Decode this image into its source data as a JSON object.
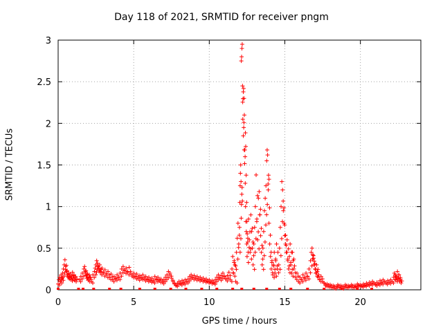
{
  "chart_data": {
    "type": "scatter",
    "title": "Day 118 of 2021, SRMTID for receiver pngm",
    "xlabel": "GPS time / hours",
    "ylabel": "SRMTID / TECUs",
    "xlim": [
      0,
      24
    ],
    "ylim": [
      0,
      3
    ],
    "xticks": [
      0,
      5,
      10,
      15,
      20
    ],
    "yticks": [
      0,
      0.5,
      1,
      1.5,
      2,
      2.5,
      3
    ],
    "ytick_labels": [
      "0",
      "0.5",
      "1",
      "1.5",
      "2",
      "2.5",
      "3"
    ],
    "grid": true,
    "marker": "+",
    "color": "#ff0000",
    "series": [
      {
        "name": "SRMTID",
        "points": [
          [
            0.0,
            0.07
          ],
          [
            0.05,
            0.12
          ],
          [
            0.1,
            0.15
          ],
          [
            0.15,
            0.1
          ],
          [
            0.2,
            0.18
          ],
          [
            0.25,
            0.14
          ],
          [
            0.3,
            0.2
          ],
          [
            0.35,
            0.25
          ],
          [
            0.4,
            0.3
          ],
          [
            0.45,
            0.36
          ],
          [
            0.5,
            0.28
          ],
          [
            0.55,
            0.22
          ],
          [
            0.6,
            0.18
          ],
          [
            0.65,
            0.16
          ],
          [
            0.7,
            0.2
          ],
          [
            0.75,
            0.15
          ],
          [
            0.8,
            0.19
          ],
          [
            0.85,
            0.13
          ],
          [
            0.9,
            0.17
          ],
          [
            0.95,
            0.21
          ],
          [
            1.0,
            0.14
          ],
          [
            1.05,
            0.18
          ],
          [
            1.1,
            0.12
          ],
          [
            1.15,
            0.16
          ],
          [
            1.4,
            0.12
          ],
          [
            1.5,
            0.16
          ],
          [
            1.6,
            0.2
          ],
          [
            1.7,
            0.25
          ],
          [
            1.75,
            0.28
          ],
          [
            1.8,
            0.22
          ],
          [
            1.85,
            0.17
          ],
          [
            1.9,
            0.14
          ],
          [
            1.95,
            0.19
          ],
          [
            2.0,
            0.12
          ],
          [
            2.05,
            0.18
          ],
          [
            2.1,
            0.15
          ],
          [
            2.2,
            0.1
          ],
          [
            2.3,
            0.18
          ],
          [
            2.4,
            0.22
          ],
          [
            2.45,
            0.26
          ],
          [
            2.5,
            0.3
          ],
          [
            2.55,
            0.35
          ],
          [
            2.6,
            0.32
          ],
          [
            2.65,
            0.28
          ],
          [
            2.7,
            0.25
          ],
          [
            2.75,
            0.3
          ],
          [
            2.8,
            0.22
          ],
          [
            2.9,
            0.26
          ],
          [
            3.0,
            0.2
          ],
          [
            3.1,
            0.24
          ],
          [
            3.2,
            0.18
          ],
          [
            3.3,
            0.22
          ],
          [
            3.4,
            0.15
          ],
          [
            3.5,
            0.19
          ],
          [
            3.6,
            0.12
          ],
          [
            3.7,
            0.16
          ],
          [
            3.8,
            0.14
          ],
          [
            3.9,
            0.18
          ],
          [
            4.0,
            0.15
          ],
          [
            4.1,
            0.2
          ],
          [
            4.2,
            0.25
          ],
          [
            4.3,
            0.28
          ],
          [
            4.4,
            0.24
          ],
          [
            4.5,
            0.26
          ],
          [
            4.6,
            0.22
          ],
          [
            4.7,
            0.27
          ],
          [
            4.8,
            0.2
          ],
          [
            4.9,
            0.18
          ],
          [
            5.0,
            0.2
          ],
          [
            5.1,
            0.16
          ],
          [
            5.2,
            0.19
          ],
          [
            5.3,
            0.14
          ],
          [
            5.4,
            0.17
          ],
          [
            5.5,
            0.15
          ],
          [
            5.6,
            0.18
          ],
          [
            5.7,
            0.13
          ],
          [
            5.8,
            0.16
          ],
          [
            5.9,
            0.12
          ],
          [
            6.0,
            0.15
          ],
          [
            6.1,
            0.11
          ],
          [
            6.2,
            0.14
          ],
          [
            6.3,
            0.1
          ],
          [
            6.4,
            0.16
          ],
          [
            6.5,
            0.12
          ],
          [
            6.6,
            0.15
          ],
          [
            6.7,
            0.11
          ],
          [
            6.8,
            0.13
          ],
          [
            6.9,
            0.09
          ],
          [
            7.0,
            0.12
          ],
          [
            7.1,
            0.15
          ],
          [
            7.2,
            0.18
          ],
          [
            7.3,
            0.22
          ],
          [
            7.4,
            0.2
          ],
          [
            7.5,
            0.14
          ],
          [
            7.6,
            0.1
          ],
          [
            7.7,
            0.07
          ],
          [
            7.8,
            0.05
          ],
          [
            7.9,
            0.08
          ],
          [
            8.0,
            0.1
          ],
          [
            8.1,
            0.07
          ],
          [
            8.2,
            0.11
          ],
          [
            8.3,
            0.08
          ],
          [
            8.4,
            0.12
          ],
          [
            8.5,
            0.1
          ],
          [
            8.6,
            0.13
          ],
          [
            8.7,
            0.16
          ],
          [
            8.8,
            0.18
          ],
          [
            8.9,
            0.15
          ],
          [
            9.0,
            0.17
          ],
          [
            9.1,
            0.14
          ],
          [
            9.2,
            0.16
          ],
          [
            9.3,
            0.13
          ],
          [
            9.4,
            0.15
          ],
          [
            9.5,
            0.12
          ],
          [
            9.6,
            0.14
          ],
          [
            9.7,
            0.11
          ],
          [
            9.8,
            0.13
          ],
          [
            9.9,
            0.1
          ],
          [
            10.0,
            0.12
          ],
          [
            10.1,
            0.09
          ],
          [
            10.2,
            0.11
          ],
          [
            10.3,
            0.08
          ],
          [
            10.4,
            0.12
          ],
          [
            10.5,
            0.15
          ],
          [
            10.6,
            0.18
          ],
          [
            10.7,
            0.14
          ],
          [
            10.8,
            0.17
          ],
          [
            10.9,
            0.2
          ],
          [
            11.0,
            0.16
          ],
          [
            11.1,
            0.13
          ],
          [
            11.2,
            0.17
          ],
          [
            11.3,
            0.21
          ],
          [
            11.4,
            0.12
          ],
          [
            11.5,
            0.25
          ],
          [
            11.55,
            0.4
          ],
          [
            11.6,
            0.2
          ],
          [
            11.65,
            0.35
          ],
          [
            11.7,
            0.3
          ],
          [
            11.75,
            0.1
          ],
          [
            11.8,
            0.45
          ],
          [
            11.85,
            0.62
          ],
          [
            11.9,
            0.8
          ],
          [
            11.95,
            0.55
          ],
          [
            12.0,
            0.75
          ],
          [
            12.02,
            1.05
          ],
          [
            12.04,
            1.25
          ],
          [
            12.06,
            1.4
          ],
          [
            12.08,
            1.5
          ],
          [
            12.1,
            1.3
          ],
          [
            12.12,
            2.75
          ],
          [
            12.14,
            2.8
          ],
          [
            12.16,
            2.9
          ],
          [
            12.18,
            2.95
          ],
          [
            12.2,
            2.45
          ],
          [
            12.22,
            2.05
          ],
          [
            12.25,
            1.85
          ],
          [
            12.28,
            1.95
          ],
          [
            12.3,
            2.3
          ],
          [
            12.32,
            2.1
          ],
          [
            12.35,
            1.68
          ],
          [
            12.38,
            1.28
          ],
          [
            12.4,
            1.0
          ],
          [
            12.42,
            0.82
          ],
          [
            12.45,
            0.7
          ],
          [
            12.48,
            0.55
          ],
          [
            12.5,
            0.4
          ],
          [
            12.55,
            0.62
          ],
          [
            12.6,
            0.85
          ],
          [
            12.65,
            0.6
          ],
          [
            12.7,
            0.45
          ],
          [
            12.75,
            0.9
          ],
          [
            12.8,
            0.7
          ],
          [
            12.85,
            0.5
          ],
          [
            12.9,
            0.3
          ],
          [
            12.95,
            0.55
          ],
          [
            13.0,
            0.75
          ],
          [
            13.05,
            1.0
          ],
          [
            13.1,
            1.38
          ],
          [
            13.15,
            0.85
          ],
          [
            13.2,
            0.6
          ],
          [
            13.25,
            1.1
          ],
          [
            13.3,
            1.18
          ],
          [
            13.35,
            0.9
          ],
          [
            13.4,
            0.65
          ],
          [
            13.45,
            0.45
          ],
          [
            13.5,
            0.3
          ],
          [
            13.55,
            0.5
          ],
          [
            13.6,
            0.7
          ],
          [
            13.65,
            0.95
          ],
          [
            13.7,
            1.1
          ],
          [
            13.75,
            1.25
          ],
          [
            13.8,
            1.55
          ],
          [
            13.83,
            1.68
          ],
          [
            13.86,
            1.62
          ],
          [
            13.9,
            1.2
          ],
          [
            13.95,
            0.8
          ],
          [
            14.0,
            0.55
          ],
          [
            14.05,
            0.4
          ],
          [
            14.1,
            0.25
          ],
          [
            14.15,
            0.35
          ],
          [
            14.2,
            0.18
          ],
          [
            14.25,
            0.3
          ],
          [
            14.3,
            0.45
          ],
          [
            14.35,
            0.2
          ],
          [
            14.4,
            0.35
          ],
          [
            14.45,
            0.55
          ],
          [
            14.5,
            0.25
          ],
          [
            14.6,
            0.3
          ],
          [
            14.65,
            0.5
          ],
          [
            14.7,
            0.75
          ],
          [
            14.75,
            1.0
          ],
          [
            14.8,
            1.3
          ],
          [
            14.85,
            1.2
          ],
          [
            14.9,
            0.95
          ],
          [
            14.95,
            0.8
          ],
          [
            15.0,
            0.65
          ],
          [
            15.05,
            0.55
          ],
          [
            15.1,
            0.45
          ],
          [
            15.15,
            0.6
          ],
          [
            15.2,
            0.35
          ],
          [
            15.25,
            0.25
          ],
          [
            15.3,
            0.4
          ],
          [
            15.35,
            0.55
          ],
          [
            15.4,
            0.3
          ],
          [
            15.45,
            0.2
          ],
          [
            15.5,
            0.45
          ],
          [
            15.55,
            0.35
          ],
          [
            15.6,
            0.25
          ],
          [
            15.7,
            0.15
          ],
          [
            15.8,
            0.2
          ],
          [
            15.9,
            0.1
          ],
          [
            16.0,
            0.15
          ],
          [
            16.1,
            0.12
          ],
          [
            16.2,
            0.18
          ],
          [
            16.3,
            0.14
          ],
          [
            16.4,
            0.2
          ],
          [
            16.5,
            0.16
          ],
          [
            16.6,
            0.25
          ],
          [
            16.7,
            0.35
          ],
          [
            16.75,
            0.45
          ],
          [
            16.8,
            0.5
          ],
          [
            16.85,
            0.42
          ],
          [
            16.9,
            0.38
          ],
          [
            16.95,
            0.3
          ],
          [
            17.0,
            0.25
          ],
          [
            17.05,
            0.2
          ],
          [
            17.1,
            0.3
          ],
          [
            17.15,
            0.22
          ],
          [
            17.2,
            0.15
          ],
          [
            17.3,
            0.12
          ],
          [
            17.4,
            0.16
          ],
          [
            17.5,
            0.1
          ],
          [
            17.6,
            0.08
          ],
          [
            17.7,
            0.05
          ],
          [
            17.8,
            0.07
          ],
          [
            17.9,
            0.04
          ],
          [
            18.0,
            0.06
          ],
          [
            18.1,
            0.03
          ],
          [
            18.2,
            0.05
          ],
          [
            18.3,
            0.02
          ],
          [
            18.4,
            0.04
          ],
          [
            18.5,
            0.06
          ],
          [
            18.6,
            0.03
          ],
          [
            18.7,
            0.05
          ],
          [
            18.8,
            0.02
          ],
          [
            18.9,
            0.04
          ],
          [
            19.0,
            0.06
          ],
          [
            19.1,
            0.03
          ],
          [
            19.2,
            0.05
          ],
          [
            19.3,
            0.04
          ],
          [
            19.4,
            0.06
          ],
          [
            19.5,
            0.03
          ],
          [
            19.6,
            0.05
          ],
          [
            19.7,
            0.04
          ],
          [
            19.8,
            0.07
          ],
          [
            19.9,
            0.05
          ],
          [
            20.0,
            0.06
          ],
          [
            20.1,
            0.04
          ],
          [
            20.2,
            0.07
          ],
          [
            20.3,
            0.05
          ],
          [
            20.4,
            0.08
          ],
          [
            20.5,
            0.06
          ],
          [
            20.6,
            0.09
          ],
          [
            20.7,
            0.07
          ],
          [
            20.8,
            0.1
          ],
          [
            20.9,
            0.08
          ],
          [
            21.0,
            0.06
          ],
          [
            21.1,
            0.09
          ],
          [
            21.2,
            0.07
          ],
          [
            21.3,
            0.11
          ],
          [
            21.4,
            0.08
          ],
          [
            21.5,
            0.12
          ],
          [
            21.6,
            0.1
          ],
          [
            21.7,
            0.08
          ],
          [
            21.8,
            0.11
          ],
          [
            21.9,
            0.09
          ],
          [
            22.0,
            0.12
          ],
          [
            22.1,
            0.1
          ],
          [
            22.2,
            0.15
          ],
          [
            22.25,
            0.2
          ],
          [
            22.3,
            0.18
          ],
          [
            22.35,
            0.12
          ],
          [
            22.4,
            0.16
          ],
          [
            22.45,
            0.22
          ],
          [
            22.5,
            0.14
          ],
          [
            22.55,
            0.18
          ],
          [
            22.6,
            0.1
          ],
          [
            22.65,
            0.13
          ]
        ]
      }
    ],
    "baseline_points_x": [
      0.0,
      1.35,
      1.65,
      2.35,
      3.4,
      4.15,
      5.4,
      6.4,
      7.45,
      8.45,
      9.5,
      10.5,
      11.55,
      12.15,
      12.95,
      13.8,
      14.65,
      15.4,
      16.5,
      17.6,
      18.75,
      19.8,
      20.75
    ]
  }
}
